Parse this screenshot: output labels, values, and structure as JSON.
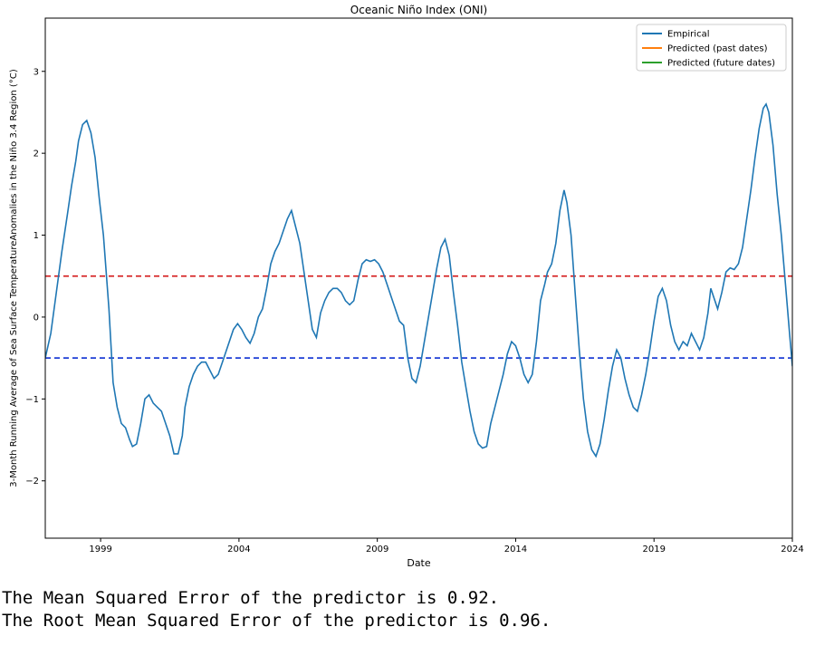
{
  "chart_data": {
    "type": "line",
    "title": "Oceanic Niño Index (ONI)",
    "xlabel": "Date",
    "ylabel": "3-Month Running Average of Sea Surface TemperatureAnomalies in the Niño 3.4 Region (°C)",
    "xlim": [
      1997.0,
      2024.0
    ],
    "ylim": [
      -2.7,
      3.65
    ],
    "xticks": [
      1999,
      2004,
      2009,
      2014,
      2019,
      2024
    ],
    "yticks": [
      -2,
      -1,
      0,
      1,
      2,
      3
    ],
    "grid": false,
    "legend_position": "top-right",
    "thresholds": [
      {
        "value": 0.5,
        "color": "#d62728",
        "style": "dashed"
      },
      {
        "value": -0.5,
        "color": "#1f3fd6",
        "style": "dashed"
      }
    ],
    "series": [
      {
        "name": "Empirical",
        "color": "#1f77b4",
        "points": [
          [
            1997.0,
            -0.5
          ],
          [
            1997.2,
            -0.2
          ],
          [
            1997.4,
            0.3
          ],
          [
            1997.6,
            0.8
          ],
          [
            1997.8,
            1.25
          ],
          [
            1997.95,
            1.6
          ],
          [
            1998.1,
            1.9
          ],
          [
            1998.2,
            2.15
          ],
          [
            1998.35,
            2.35
          ],
          [
            1998.5,
            2.4
          ],
          [
            1998.65,
            2.25
          ],
          [
            1998.8,
            1.95
          ],
          [
            1998.95,
            1.45
          ],
          [
            1999.1,
            1.0
          ],
          [
            1999.3,
            0.1
          ],
          [
            1999.45,
            -0.8
          ],
          [
            1999.6,
            -1.1
          ],
          [
            1999.75,
            -1.3
          ],
          [
            1999.9,
            -1.35
          ],
          [
            2000.05,
            -1.5
          ],
          [
            2000.15,
            -1.58
          ],
          [
            2000.3,
            -1.55
          ],
          [
            2000.45,
            -1.3
          ],
          [
            2000.6,
            -1.0
          ],
          [
            2000.75,
            -0.95
          ],
          [
            2000.9,
            -1.05
          ],
          [
            2001.05,
            -1.1
          ],
          [
            2001.2,
            -1.15
          ],
          [
            2001.35,
            -1.3
          ],
          [
            2001.5,
            -1.45
          ],
          [
            2001.65,
            -1.67
          ],
          [
            2001.8,
            -1.67
          ],
          [
            2001.95,
            -1.45
          ],
          [
            2002.05,
            -1.1
          ],
          [
            2002.2,
            -0.85
          ],
          [
            2002.35,
            -0.7
          ],
          [
            2002.5,
            -0.6
          ],
          [
            2002.65,
            -0.55
          ],
          [
            2002.8,
            -0.55
          ],
          [
            2002.95,
            -0.65
          ],
          [
            2003.1,
            -0.75
          ],
          [
            2003.25,
            -0.7
          ],
          [
            2003.4,
            -0.55
          ],
          [
            2003.6,
            -0.35
          ],
          [
            2003.8,
            -0.15
          ],
          [
            2003.95,
            -0.08
          ],
          [
            2004.1,
            -0.15
          ],
          [
            2004.25,
            -0.25
          ],
          [
            2004.4,
            -0.32
          ],
          [
            2004.55,
            -0.2
          ],
          [
            2004.7,
            0.0
          ],
          [
            2004.85,
            0.1
          ],
          [
            2005.0,
            0.35
          ],
          [
            2005.15,
            0.65
          ],
          [
            2005.3,
            0.8
          ],
          [
            2005.45,
            0.9
          ],
          [
            2005.6,
            1.05
          ],
          [
            2005.75,
            1.2
          ],
          [
            2005.9,
            1.3
          ],
          [
            2006.05,
            1.1
          ],
          [
            2006.2,
            0.9
          ],
          [
            2006.35,
            0.55
          ],
          [
            2006.5,
            0.2
          ],
          [
            2006.65,
            -0.15
          ],
          [
            2006.8,
            -0.25
          ],
          [
            2006.95,
            0.05
          ],
          [
            2007.1,
            0.2
          ],
          [
            2007.25,
            0.3
          ],
          [
            2007.4,
            0.35
          ],
          [
            2007.55,
            0.35
          ],
          [
            2007.7,
            0.3
          ],
          [
            2007.85,
            0.2
          ],
          [
            2008.0,
            0.15
          ],
          [
            2008.15,
            0.2
          ],
          [
            2008.3,
            0.45
          ],
          [
            2008.45,
            0.65
          ],
          [
            2008.6,
            0.7
          ],
          [
            2008.75,
            0.68
          ],
          [
            2008.9,
            0.7
          ],
          [
            2009.05,
            0.65
          ],
          [
            2009.2,
            0.55
          ],
          [
            2009.35,
            0.4
          ],
          [
            2009.5,
            0.25
          ],
          [
            2009.65,
            0.1
          ],
          [
            2009.8,
            -0.05
          ],
          [
            2009.95,
            -0.1
          ],
          [
            2010.1,
            -0.5
          ],
          [
            2010.25,
            -0.75
          ],
          [
            2010.4,
            -0.8
          ],
          [
            2010.55,
            -0.6
          ],
          [
            2010.7,
            -0.3
          ],
          [
            2010.85,
            0.0
          ],
          [
            2011.0,
            0.3
          ],
          [
            2011.15,
            0.6
          ],
          [
            2011.3,
            0.85
          ],
          [
            2011.45,
            0.95
          ],
          [
            2011.6,
            0.75
          ],
          [
            2011.75,
            0.3
          ],
          [
            2011.9,
            -0.1
          ],
          [
            2012.05,
            -0.55
          ],
          [
            2012.2,
            -0.85
          ],
          [
            2012.35,
            -1.15
          ],
          [
            2012.5,
            -1.4
          ],
          [
            2012.65,
            -1.55
          ],
          [
            2012.8,
            -1.6
          ],
          [
            2012.95,
            -1.58
          ],
          [
            2013.1,
            -1.3
          ],
          [
            2013.25,
            -1.1
          ],
          [
            2013.4,
            -0.9
          ],
          [
            2013.55,
            -0.7
          ],
          [
            2013.7,
            -0.45
          ],
          [
            2013.85,
            -0.3
          ],
          [
            2014.0,
            -0.35
          ],
          [
            2014.15,
            -0.5
          ],
          [
            2014.3,
            -0.7
          ],
          [
            2014.45,
            -0.8
          ],
          [
            2014.6,
            -0.7
          ],
          [
            2014.75,
            -0.3
          ],
          [
            2014.9,
            0.2
          ],
          [
            2015.05,
            0.4
          ],
          [
            2015.15,
            0.55
          ],
          [
            2015.3,
            0.65
          ],
          [
            2015.45,
            0.9
          ],
          [
            2015.6,
            1.3
          ],
          [
            2015.75,
            1.55
          ],
          [
            2015.85,
            1.4
          ],
          [
            2016.0,
            1.0
          ],
          [
            2016.15,
            0.3
          ],
          [
            2016.3,
            -0.4
          ],
          [
            2016.45,
            -1.0
          ],
          [
            2016.6,
            -1.4
          ],
          [
            2016.75,
            -1.62
          ],
          [
            2016.9,
            -1.7
          ],
          [
            2017.05,
            -1.55
          ],
          [
            2017.2,
            -1.25
          ],
          [
            2017.35,
            -0.9
          ],
          [
            2017.5,
            -0.6
          ],
          [
            2017.65,
            -0.4
          ],
          [
            2017.8,
            -0.5
          ],
          [
            2017.95,
            -0.75
          ],
          [
            2018.1,
            -0.95
          ],
          [
            2018.25,
            -1.1
          ],
          [
            2018.4,
            -1.15
          ],
          [
            2018.55,
            -0.95
          ],
          [
            2018.7,
            -0.7
          ],
          [
            2018.85,
            -0.4
          ],
          [
            2019.0,
            -0.05
          ],
          [
            2019.15,
            0.25
          ],
          [
            2019.3,
            0.35
          ],
          [
            2019.45,
            0.2
          ],
          [
            2019.6,
            -0.1
          ],
          [
            2019.75,
            -0.3
          ],
          [
            2019.9,
            -0.4
          ],
          [
            2020.05,
            -0.3
          ],
          [
            2020.2,
            -0.35
          ],
          [
            2020.35,
            -0.2
          ],
          [
            2020.5,
            -0.3
          ],
          [
            2020.65,
            -0.4
          ],
          [
            2020.8,
            -0.25
          ],
          [
            2020.95,
            0.05
          ],
          [
            2021.05,
            0.35
          ],
          [
            2021.15,
            0.25
          ],
          [
            2021.3,
            0.1
          ],
          [
            2021.45,
            0.3
          ],
          [
            2021.6,
            0.55
          ],
          [
            2021.75,
            0.6
          ],
          [
            2021.9,
            0.58
          ],
          [
            2022.05,
            0.65
          ],
          [
            2022.2,
            0.85
          ],
          [
            2022.35,
            1.2
          ],
          [
            2022.5,
            1.55
          ],
          [
            2022.65,
            1.95
          ],
          [
            2022.8,
            2.3
          ],
          [
            2022.95,
            2.55
          ],
          [
            2023.05,
            2.6
          ],
          [
            2023.15,
            2.5
          ],
          [
            2023.3,
            2.1
          ],
          [
            2023.45,
            1.5
          ],
          [
            2023.6,
            1.0
          ],
          [
            2023.75,
            0.4
          ],
          [
            2023.9,
            -0.2
          ],
          [
            2024.0,
            -0.6
          ]
        ]
      }
    ]
  },
  "legend": {
    "items": [
      {
        "label": "Empirical",
        "color": "#1f77b4"
      },
      {
        "label": "Predicted (past dates)",
        "color": "#ff7f0e"
      },
      {
        "label": "Predicted (future dates)",
        "color": "#2ca02c"
      }
    ]
  },
  "output": {
    "mse_line": "The Mean Squared Error of the predictor is 0.92.",
    "rmse_line": "The Root Mean Squared Error of the predictor is 0.96."
  }
}
